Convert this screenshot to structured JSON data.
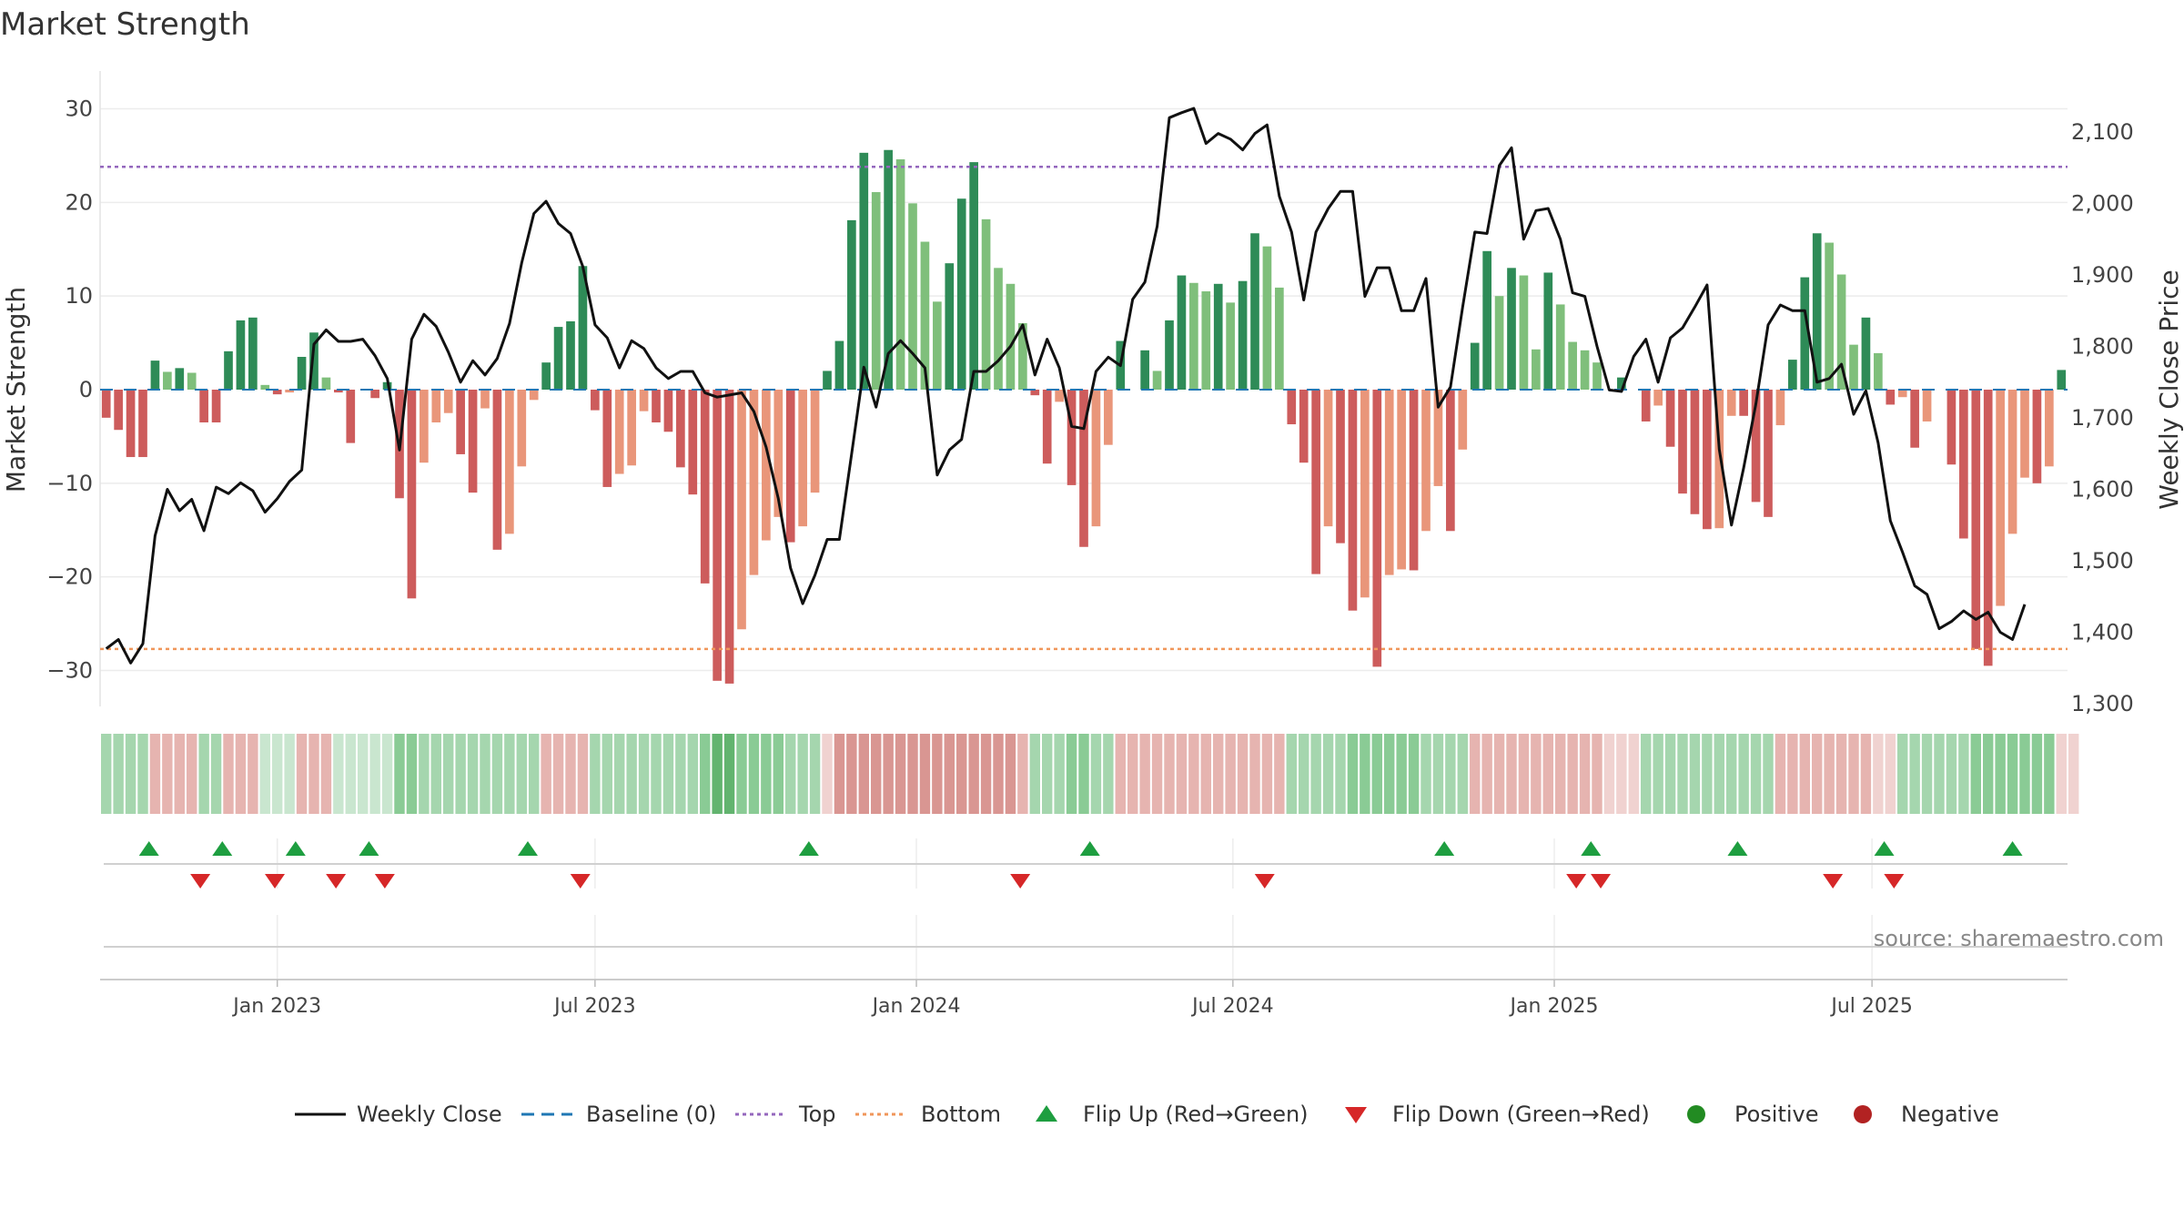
{
  "chart_data": {
    "type": "bar",
    "title": "Market Strength",
    "ylabel_left": "Market Strength",
    "ylabel_right": "Weekly Close Price",
    "ylim_left": [
      -33,
      34
    ],
    "ylim_right": [
      1290,
      2170
    ],
    "yticks_left": [
      30,
      20,
      10,
      0,
      -10,
      -20,
      -30
    ],
    "ytick_labels_left": [
      "30",
      "20",
      "10",
      "0",
      "−10",
      "−20",
      "−30"
    ],
    "yticks_right": [
      2100,
      2000,
      1900,
      1800,
      1700,
      1600,
      1500,
      1400,
      1300
    ],
    "ytick_labels_right": [
      "2,100",
      "2,000",
      "1,900",
      "1,800",
      "1,700",
      "1,600",
      "1,500",
      "1,400",
      "1,300"
    ],
    "x_ticks": [
      {
        "label": "Jan 2023",
        "week": 14.5
      },
      {
        "label": "Jul 2023",
        "week": 40.5
      },
      {
        "label": "Jan 2024",
        "week": 66.8
      },
      {
        "label": "Jul 2024",
        "week": 92.7
      },
      {
        "label": "Jan 2025",
        "week": 119
      },
      {
        "label": "Jul 2025",
        "week": 145
      }
    ],
    "top_level": 23.8,
    "bottom_level": -27.7,
    "strength": [
      -3,
      -4.3,
      -7.2,
      -7.2,
      3.1,
      1.9,
      2.3,
      1.8,
      -3.5,
      -3.5,
      4.1,
      7.4,
      7.7,
      0.5,
      -0.5,
      -0.3,
      3.5,
      6.1,
      1.3,
      -0.3,
      -5.7,
      0,
      -0.9,
      0.8,
      -11.6,
      -22.3,
      -7.8,
      -3.5,
      -2.5,
      -6.9,
      -11,
      -2,
      -17.1,
      -15.4,
      -8.2,
      -1.1,
      2.9,
      6.7,
      7.3,
      13.2,
      -2.2,
      -10.4,
      -9,
      -8.1,
      -2.3,
      -3.5,
      -4.5,
      -8.3,
      -11.2,
      -20.7,
      -31.1,
      -31.4,
      -25.6,
      -19.8,
      -16.1,
      -13.6,
      -16.3,
      -14.6,
      -11,
      2,
      5.2,
      18.1,
      25.3,
      21.1,
      25.6,
      24.6,
      19.9,
      15.8,
      9.4,
      13.5,
      20.4,
      24.3,
      18.2,
      13,
      11.3,
      7.1,
      -0.6,
      -7.9,
      -1.3,
      -10.2,
      -16.8,
      -14.6,
      -5.9,
      5.2,
      0,
      4.2,
      2,
      7.4,
      12.2,
      11.4,
      10.5,
      11.3,
      9.3,
      11.6,
      16.7,
      15.3,
      10.9,
      -3.7,
      -7.8,
      -19.7,
      -14.6,
      -16.4,
      -23.6,
      -22.2,
      -29.6,
      -19.8,
      -19.2,
      -19.3,
      -15.1,
      -10.3,
      -15.1,
      -6.4,
      5,
      14.8,
      10,
      13,
      12.2,
      4.3,
      12.5,
      9.1,
      5.1,
      4.2,
      2.9,
      0,
      1.3,
      0,
      -3.4,
      -1.7,
      -6.1,
      -11.1,
      -13.3,
      -14.9,
      -14.8,
      -2.8,
      -2.8,
      -12,
      -13.6,
      -3.8,
      3.2,
      12,
      16.7,
      15.7,
      12.3,
      4.8,
      7.7,
      3.9,
      -1.6,
      -0.8,
      -6.2,
      -3.4,
      0,
      -8,
      -15.9,
      -27.7,
      -29.5,
      -23.1,
      -15.4,
      -9.4,
      -10,
      -8.2,
      2.1
    ],
    "series": [
      {
        "name": "Weekly Close",
        "values": [
          1377,
          1390,
          1357,
          1384,
          1535,
          1600,
          1570,
          1586,
          1542,
          1603,
          1594,
          1609,
          1598,
          1568,
          1587,
          1611,
          1627,
          1803,
          1823,
          1807,
          1807,
          1810,
          1787,
          1755,
          1655,
          1810,
          1845,
          1828,
          1792,
          1750,
          1780,
          1760,
          1783,
          1832,
          1917,
          1986,
          2003,
          1972,
          1958,
          1912,
          1830,
          1812,
          1770,
          1808,
          1797,
          1770,
          1755,
          1765,
          1765,
          1735,
          1729,
          1732,
          1735,
          1709,
          1659,
          1587,
          1490,
          1440,
          1480,
          1530,
          1530,
          1650,
          1771,
          1715,
          1790,
          1808,
          1790,
          1770,
          1620,
          1655,
          1670,
          1765,
          1765,
          1780,
          1800,
          1830,
          1760,
          1810,
          1770,
          1688,
          1685,
          1765,
          1785,
          1773,
          1866,
          1890,
          1968,
          2120,
          2127,
          2133,
          2084,
          2098,
          2090,
          2075,
          2098,
          2110,
          2010,
          1960,
          1865,
          1960,
          1993,
          2017,
          2017,
          1870,
          1910,
          1910,
          1850,
          1850,
          1895,
          1715,
          1743,
          1855,
          1960,
          1958,
          2053,
          2078,
          1950,
          1990,
          1993,
          1950,
          1875,
          1870,
          1800,
          1739,
          1737,
          1786,
          1810,
          1750,
          1812,
          1826,
          1855,
          1886,
          1656,
          1550,
          1630,
          1720,
          1830,
          1858,
          1850,
          1850,
          1750,
          1755,
          1775,
          1705,
          1738,
          1665,
          1556,
          1512,
          1465,
          1453,
          1405,
          1415,
          1430,
          1418,
          1428,
          1400,
          1390,
          1439
        ]
      }
    ],
    "band_shades": [
      2,
      2,
      2,
      2,
      -2,
      -2,
      -2,
      -2,
      2,
      2,
      -2,
      -2,
      -2,
      1,
      1,
      1,
      -2,
      -2,
      -2,
      1,
      1,
      1,
      1,
      1,
      3,
      3,
      2,
      2,
      2,
      2,
      2,
      2,
      2,
      2,
      2,
      2,
      -2,
      -2,
      -2,
      -2,
      2,
      2,
      2,
      2,
      2,
      2,
      2,
      2,
      2,
      3,
      4,
      4,
      3,
      3,
      3,
      3,
      2,
      2,
      2,
      -1,
      -3,
      -3,
      -3,
      -3,
      -3,
      -3,
      -3,
      -3,
      -3,
      -3,
      -3,
      -3,
      -3,
      -3,
      -3,
      -2,
      2,
      2,
      2,
      3,
      3,
      2,
      2,
      -2,
      -2,
      -2,
      -2,
      -2,
      -2,
      -2,
      -2,
      -2,
      -2,
      -2,
      -2,
      -2,
      -2,
      2,
      2,
      2,
      2,
      2,
      3,
      3,
      3,
      3,
      3,
      3,
      2,
      2,
      2,
      2,
      -2,
      -2,
      -2,
      -2,
      -2,
      -2,
      -2,
      -2,
      -2,
      -2,
      -2,
      -1,
      -1,
      -1,
      2,
      2,
      2,
      2,
      2,
      2,
      2,
      2,
      2,
      2,
      2,
      -2,
      -2,
      -2,
      -2,
      -2,
      -2,
      -2,
      -2,
      -1,
      -1,
      2,
      2,
      2,
      2,
      2,
      2,
      3,
      3,
      3,
      3,
      3,
      3,
      3,
      -1,
      -1
    ],
    "flip_up_weeks": [
      4,
      10,
      16,
      22,
      35,
      58,
      81,
      110,
      122,
      134,
      146,
      156.5
    ],
    "flip_down_weeks": [
      8.2,
      14.3,
      19.3,
      23.3,
      39.3,
      75.3,
      95.3,
      120.8,
      122.8,
      141.8,
      146.8
    ],
    "legend": [
      "Weekly Close",
      "Baseline (0)",
      "Top",
      "Bottom",
      "Flip Up (Red→Green)",
      "Flip Down (Green→Red)",
      "Positive",
      "Negative"
    ],
    "colors": {
      "pos_dark": "#2e8b57",
      "pos_light": "#7fbf7b",
      "neg_dark": "#cd5c5c",
      "neg_light": "#e9967a",
      "top_line": "#9467bd",
      "bottom_line": "#f0965a",
      "baseline": "#1f77b4",
      "price_line": "#111111",
      "flip_up": "#1e9e40",
      "flip_down": "#d62728",
      "legend_positive": "#228b22",
      "legend_negative": "#b22222"
    }
  },
  "source": "source: sharemaestro.com"
}
